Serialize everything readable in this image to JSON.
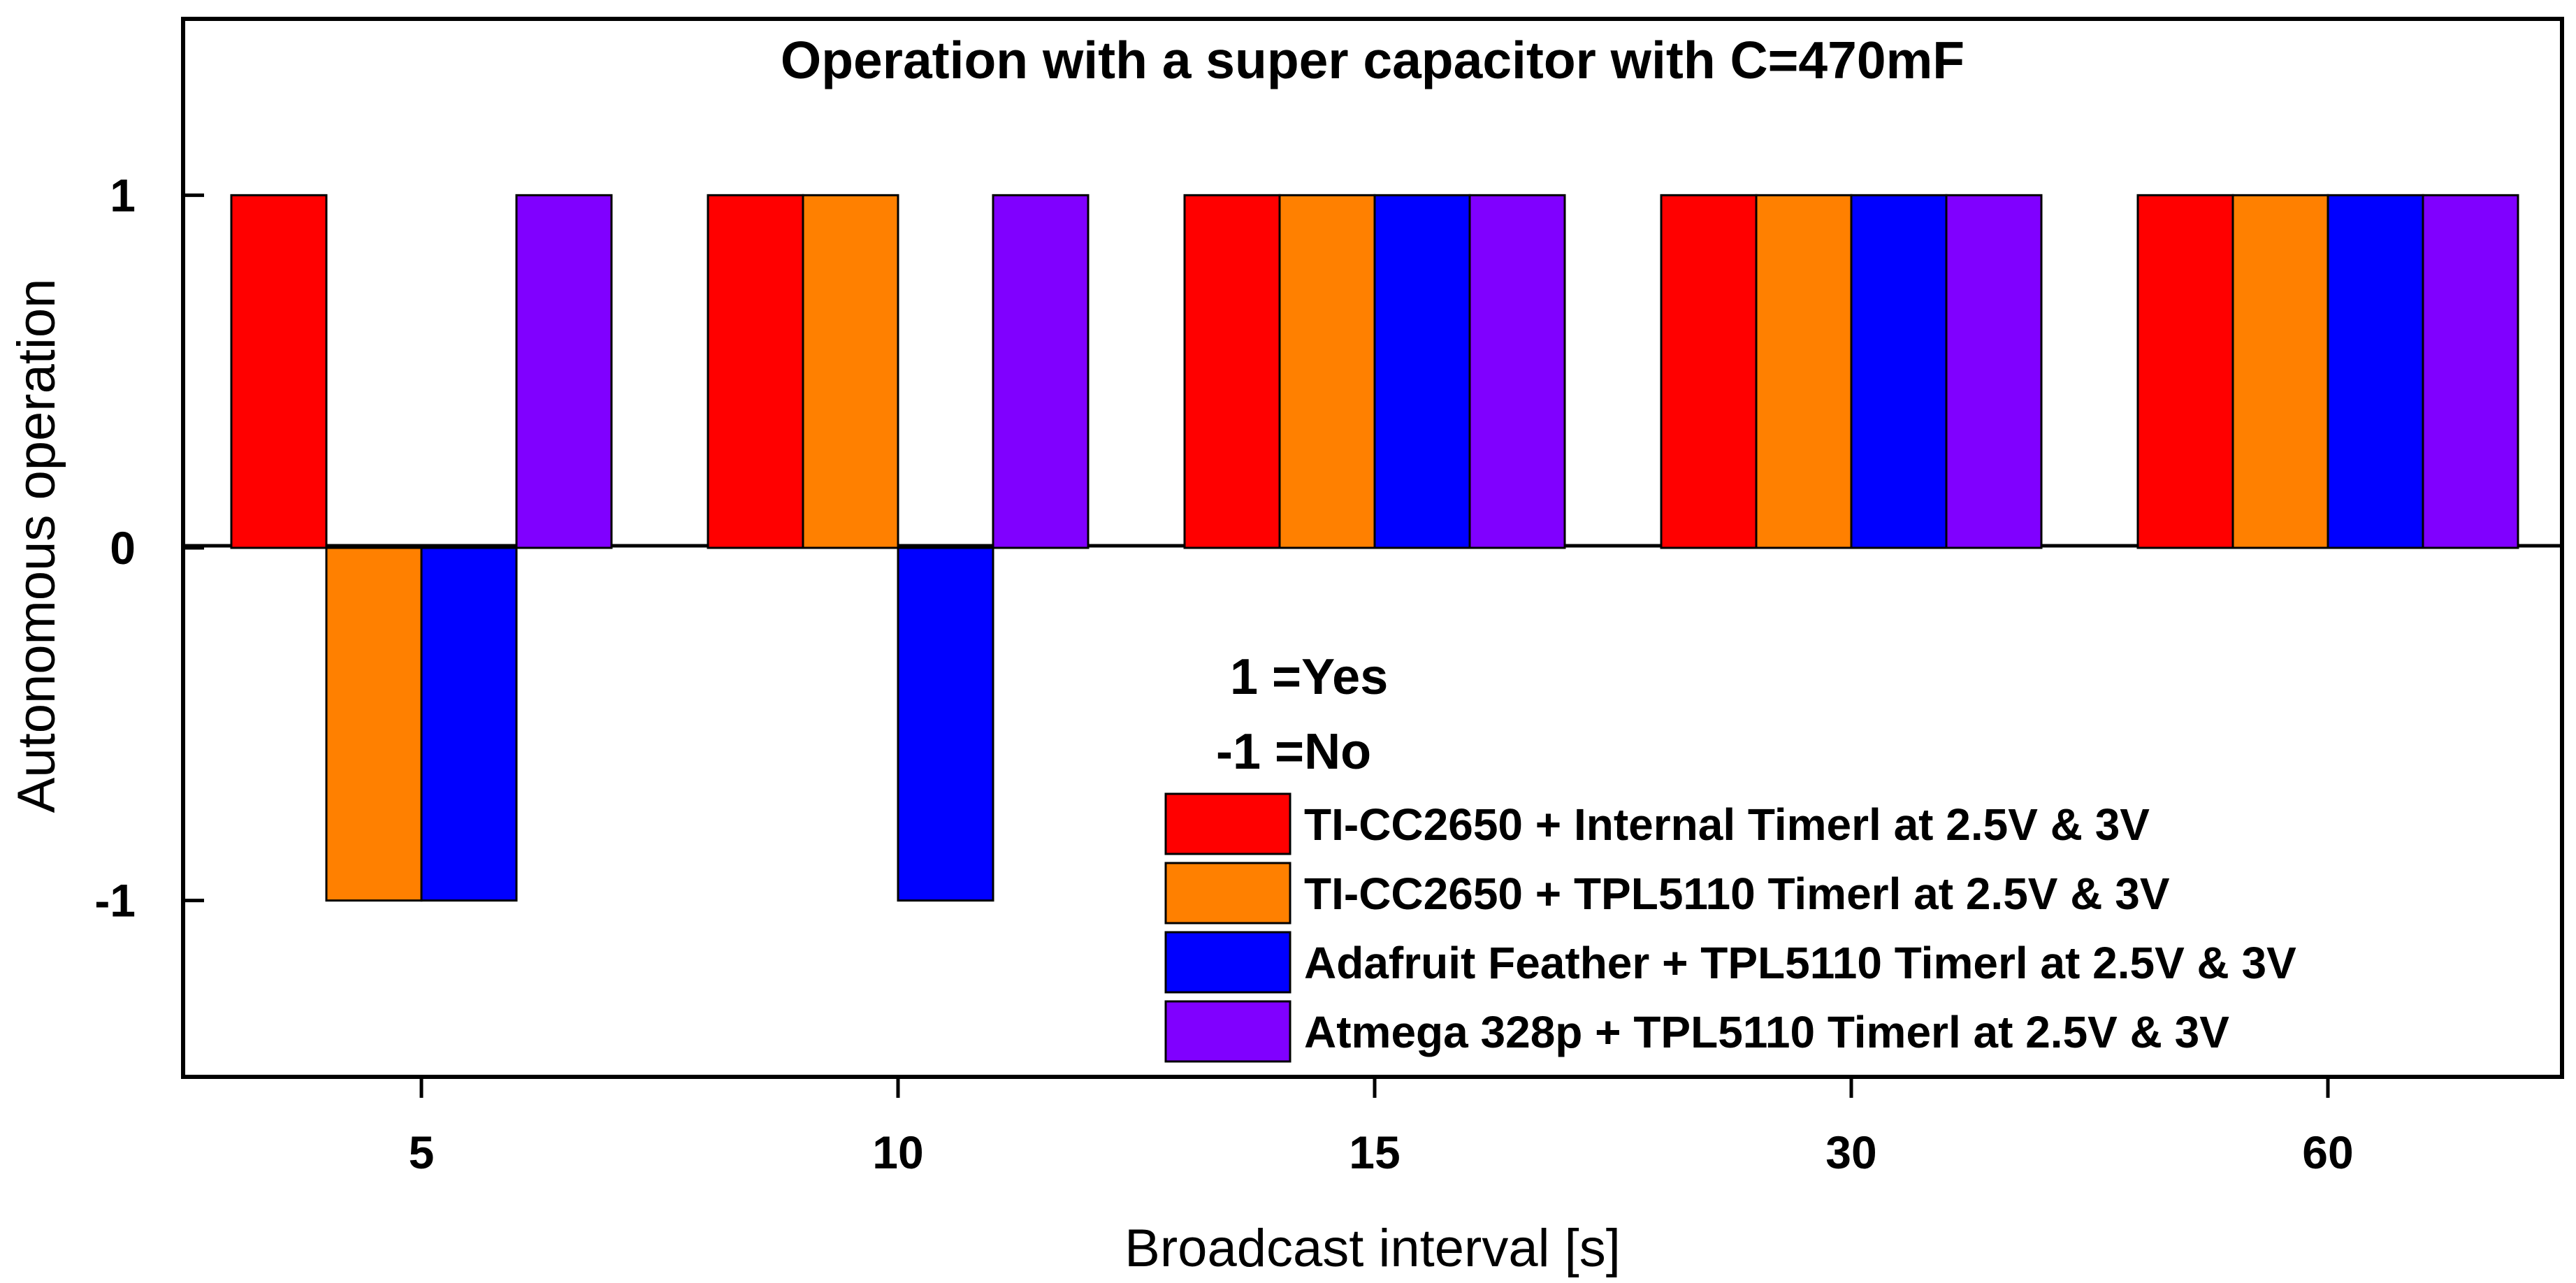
{
  "chart_data": {
    "type": "bar",
    "title": "Operation with a super capacitor with C=470mF",
    "xlabel": "Broadcast interval [s]",
    "ylabel": "Autonomous operation",
    "categories": [
      "5",
      "10",
      "15",
      "30",
      "60"
    ],
    "ylim": [
      -1.5,
      1.5
    ],
    "yticks": [
      {
        "value": 1,
        "label": "1"
      },
      {
        "value": 0,
        "label": "0"
      },
      {
        "value": -1,
        "label": "-1"
      }
    ],
    "series": [
      {
        "name": "TI-CC2650 + Internal Timerl at 2.5V & 3V",
        "color": "#ff0000",
        "values": [
          1,
          1,
          1,
          1,
          1
        ]
      },
      {
        "name": "TI-CC2650 + TPL5110 Timerl at 2.5V & 3V",
        "color": "#ff8000",
        "values": [
          -1,
          1,
          1,
          1,
          1
        ]
      },
      {
        "name": "Adafruit Feather + TPL5110 Timerl at 2.5V & 3V",
        "color": "#0000ff",
        "values": [
          -1,
          -1,
          1,
          1,
          1
        ]
      },
      {
        "name": "Atmega 328p + TPL5110 Timerl at 2.5V & 3V",
        "color": "#8000ff",
        "values": [
          1,
          1,
          1,
          1,
          1
        ]
      }
    ],
    "notes": [
      "1 =Yes",
      "-1 =No"
    ],
    "grid": false,
    "legend_position": "bottom-right"
  }
}
